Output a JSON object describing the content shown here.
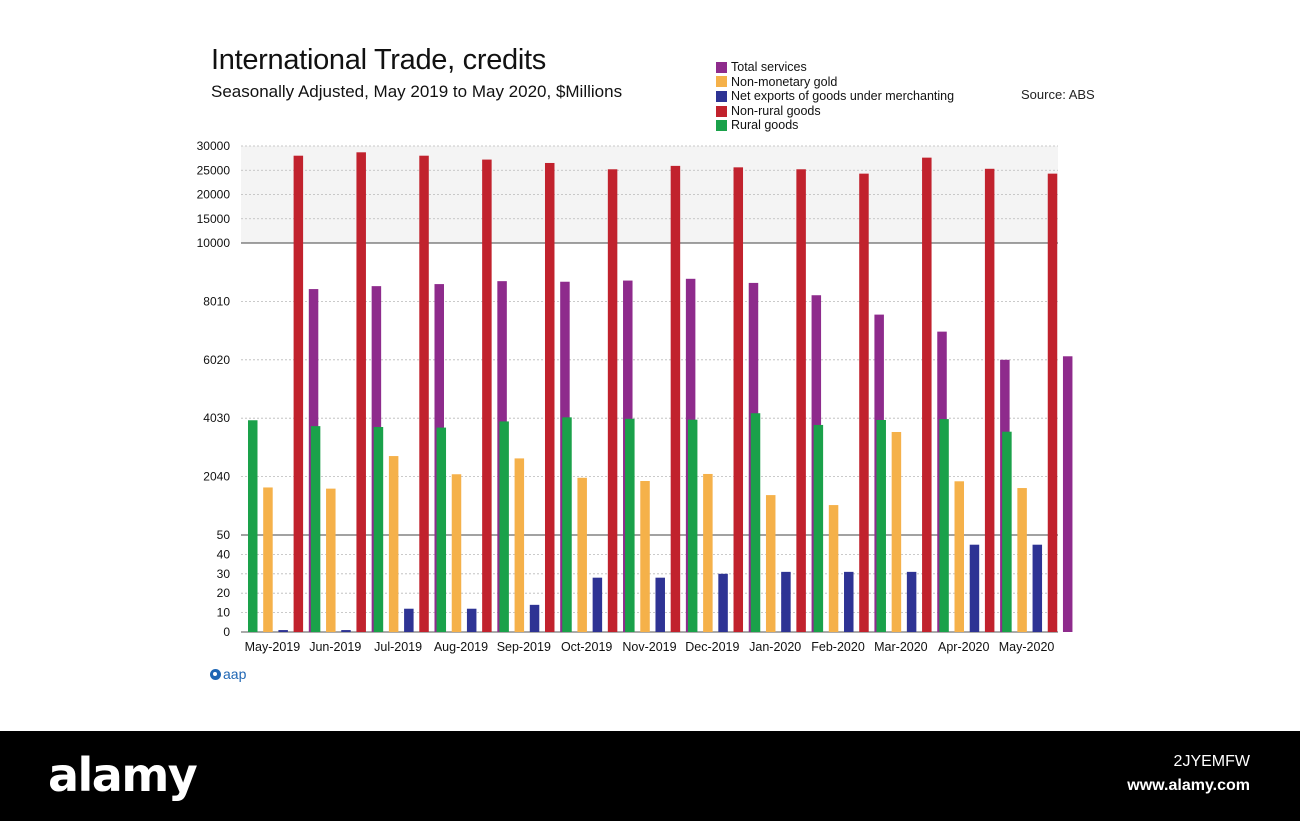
{
  "header": {
    "title": "International Trade, credits",
    "subtitle": "Seasonally Adjusted, May 2019 to May 2020, $Millions",
    "source": "Source: ABS"
  },
  "brand": {
    "label": "aap",
    "icon": "aap-logo-icon"
  },
  "footer": {
    "logo": "alamy",
    "image_id": "2JYEMFW",
    "url": "www.alamy.com"
  },
  "chart_data": {
    "type": "bar",
    "title": "International Trade, credits",
    "subtitle": "Seasonally Adjusted, May 2019 to May 2020, $Millions",
    "categories": [
      "May-2019",
      "Jun-2019",
      "Jul-2019",
      "Aug-2019",
      "Sep-2019",
      "Oct-2019",
      "Nov-2019",
      "Dec-2019",
      "Jan-2020",
      "Feb-2020",
      "Mar-2020",
      "Apr-2020",
      "May-2020"
    ],
    "y_axis": {
      "scale": "broken",
      "segments": [
        {
          "range": [
            0,
            50
          ],
          "ticks": [
            0,
            10,
            20,
            30,
            40,
            50
          ]
        },
        {
          "range": [
            50,
            10000
          ],
          "ticks": [
            2040,
            4030,
            6020,
            8010,
            10000
          ]
        },
        {
          "range": [
            10000,
            30000
          ],
          "ticks": [
            10000,
            15000,
            20000,
            25000,
            30000
          ]
        }
      ]
    },
    "grid": true,
    "legend_position": "top-right",
    "series": [
      {
        "name": "Rural goods",
        "color": "#1aa14a",
        "values": [
          3960,
          3760,
          3730,
          3710,
          3920,
          4060,
          4010,
          3980,
          4200,
          3800,
          3970,
          4000,
          3570
        ]
      },
      {
        "name": "Non-monetary gold",
        "color": "#f5b14a",
        "values": [
          1670,
          1630,
          2740,
          2120,
          2660,
          2000,
          1890,
          2130,
          1410,
          1070,
          3560,
          1880,
          1650
        ]
      },
      {
        "name": "Net exports of goods under merchanting",
        "color": "#2e3394",
        "values": [
          1,
          1,
          12,
          12,
          14,
          28,
          28,
          30,
          31,
          31,
          31,
          45,
          45
        ]
      },
      {
        "name": "Non-rural goods",
        "color": "#c1222d",
        "values": [
          28000,
          28700,
          28000,
          27200,
          26500,
          25200,
          25900,
          25600,
          25200,
          24300,
          27600,
          25300,
          24300
        ]
      },
      {
        "name": "Total services",
        "color": "#8e2b8c",
        "values": [
          8430,
          8530,
          8600,
          8700,
          8680,
          8720,
          8780,
          8640,
          8220,
          7560,
          6980,
          6020,
          6140
        ]
      }
    ],
    "legend_order": [
      "Total services",
      "Non-monetary gold",
      "Net exports of goods under merchanting",
      "Non-rural goods",
      "Rural goods"
    ]
  }
}
